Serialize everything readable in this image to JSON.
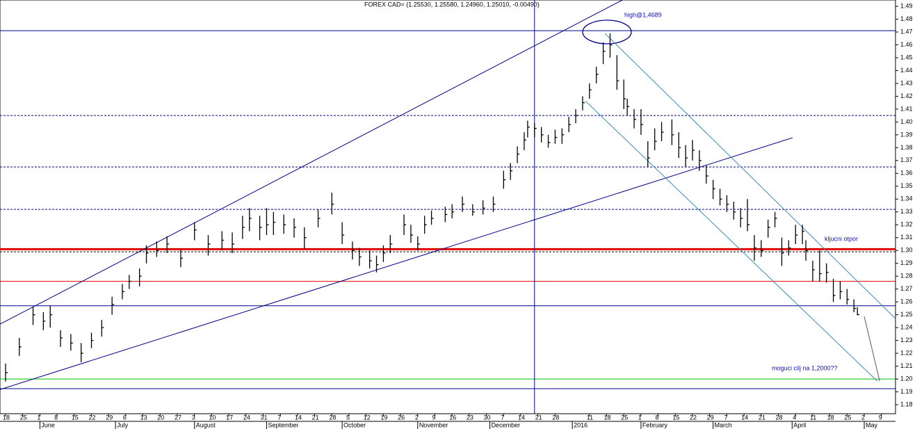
{
  "chart_data": {
    "type": "ohlc",
    "title": "FOREX CAD= (1.25530, 1.25580, 1.24960, 1.25010, -0.00490)",
    "annotations": [
      "high@1,4689",
      "kljucni otpor",
      "moguci cilj na 1,2000??"
    ],
    "color": "#000000",
    "x": [
      0,
      4,
      8,
      11,
      13,
      16,
      19,
      22,
      25,
      28,
      31,
      34,
      36,
      39,
      41,
      44,
      47,
      51,
      55,
      59,
      63,
      66,
      69,
      71,
      74,
      76,
      78,
      81,
      84,
      87,
      91,
      95,
      98,
      101,
      103,
      106,
      108,
      110,
      112,
      116,
      118,
      120,
      122,
      124,
      128,
      130,
      133,
      136,
      139,
      142,
      145,
      147,
      149,
      151,
      152,
      154,
      156,
      158,
      160,
      162,
      164,
      166,
      168,
      170,
      172,
      174,
      176,
      178,
      180,
      181,
      183,
      185,
      187,
      189,
      191,
      194,
      196,
      198,
      200,
      202,
      204,
      206,
      208,
      210,
      212,
      214,
      216,
      218,
      220,
      222,
      224,
      226,
      228,
      230,
      232,
      233,
      235,
      237,
      239,
      241,
      243,
      245,
      247,
      248
    ],
    "high": [
      1.212,
      1.232,
      1.256,
      1.252,
      1.257,
      1.238,
      1.235,
      1.228,
      1.236,
      1.246,
      1.264,
      1.274,
      1.281,
      1.286,
      1.304,
      1.307,
      1.311,
      1.301,
      1.322,
      1.312,
      1.315,
      1.314,
      1.327,
      1.333,
      1.327,
      1.333,
      1.33,
      1.328,
      1.325,
      1.318,
      1.332,
      1.345,
      1.322,
      1.307,
      1.302,
      1.3,
      1.296,
      1.304,
      1.312,
      1.328,
      1.32,
      1.311,
      1.327,
      1.331,
      1.334,
      1.336,
      1.342,
      1.336,
      1.339,
      1.342,
      1.362,
      1.368,
      1.381,
      1.392,
      1.401,
      1.399,
      1.396,
      1.39,
      1.394,
      1.395,
      1.404,
      1.41,
      1.42,
      1.43,
      1.443,
      1.462,
      1.4689,
      1.452,
      1.433,
      1.418,
      1.41,
      1.41,
      1.385,
      1.395,
      1.4,
      1.402,
      1.392,
      1.382,
      1.386,
      1.378,
      1.366,
      1.355,
      1.348,
      1.343,
      1.338,
      1.333,
      1.34,
      1.312,
      1.308,
      1.324,
      1.33,
      1.31,
      1.308,
      1.32,
      1.32,
      1.308,
      1.292,
      1.3,
      1.29,
      1.278,
      1.276,
      1.27,
      1.262,
      1.2558
    ],
    "low": [
      1.198,
      1.218,
      1.242,
      1.238,
      1.24,
      1.225,
      1.222,
      1.213,
      1.224,
      1.233,
      1.25,
      1.262,
      1.27,
      1.272,
      1.29,
      1.295,
      1.298,
      1.287,
      1.308,
      1.296,
      1.3,
      1.298,
      1.309,
      1.315,
      1.308,
      1.312,
      1.312,
      1.313,
      1.31,
      1.301,
      1.318,
      1.328,
      1.305,
      1.293,
      1.288,
      1.286,
      1.283,
      1.291,
      1.298,
      1.312,
      1.306,
      1.3,
      1.313,
      1.32,
      1.322,
      1.325,
      1.33,
      1.327,
      1.328,
      1.33,
      1.348,
      1.355,
      1.368,
      1.378,
      1.388,
      1.388,
      1.384,
      1.38,
      1.383,
      1.383,
      1.392,
      1.399,
      1.409,
      1.418,
      1.43,
      1.445,
      1.45,
      1.425,
      1.41,
      1.405,
      1.395,
      1.39,
      1.365,
      1.378,
      1.385,
      1.382,
      1.372,
      1.365,
      1.37,
      1.362,
      1.352,
      1.34,
      1.335,
      1.33,
      1.324,
      1.318,
      1.315,
      1.292,
      1.295,
      1.31,
      1.318,
      1.288,
      1.296,
      1.305,
      1.305,
      1.292,
      1.276,
      1.276,
      1.275,
      1.26,
      1.262,
      1.258,
      1.252,
      1.2496
    ],
    "close": [
      1.205,
      1.225,
      1.25,
      1.245,
      1.25,
      1.232,
      1.228,
      1.22,
      1.23,
      1.24,
      1.258,
      1.268,
      1.276,
      1.28,
      1.298,
      1.3,
      1.305,
      1.294,
      1.316,
      1.305,
      1.308,
      1.305,
      1.318,
      1.325,
      1.318,
      1.32,
      1.322,
      1.32,
      1.318,
      1.31,
      1.325,
      1.336,
      1.312,
      1.3,
      1.295,
      1.292,
      1.289,
      1.298,
      1.305,
      1.32,
      1.312,
      1.305,
      1.32,
      1.325,
      1.328,
      1.33,
      1.336,
      1.33,
      1.333,
      1.336,
      1.355,
      1.362,
      1.375,
      1.386,
      1.396,
      1.395,
      1.39,
      1.384,
      1.388,
      1.39,
      1.398,
      1.405,
      1.415,
      1.425,
      1.437,
      1.455,
      1.46,
      1.432,
      1.418,
      1.412,
      1.402,
      1.398,
      1.372,
      1.385,
      1.392,
      1.39,
      1.38,
      1.372,
      1.378,
      1.37,
      1.358,
      1.348,
      1.34,
      1.336,
      1.33,
      1.325,
      1.32,
      1.302,
      1.3,
      1.318,
      1.325,
      1.298,
      1.302,
      1.312,
      1.315,
      1.3,
      1.285,
      1.282,
      1.283,
      1.265,
      1.268,
      1.262,
      1.255,
      1.2501
    ],
    "xlim": [
      -1.62,
      259.1
    ],
    "ylim": [
      1.173,
      1.4949
    ],
    "yticks": [
      1.18,
      1.19,
      {
        "value": 1.2,
        "label": "1.20"
      },
      1.21,
      1.22,
      1.23,
      1.24,
      1.25,
      1.26,
      1.27,
      1.28,
      1.29,
      {
        "value": 1.3,
        "label": "1.30"
      },
      1.31,
      1.32,
      1.33,
      1.34,
      1.35,
      1.36,
      1.37,
      1.38,
      1.39,
      {
        "value": 1.4,
        "label": "1.40"
      },
      1.41,
      1.42,
      1.43,
      1.44,
      1.45,
      1.46,
      1.47,
      1.48,
      1.49
    ],
    "xticks": [
      {
        "value": 0,
        "label": "18"
      },
      {
        "value": 5,
        "label": "25"
      },
      {
        "value": 10,
        "label": "1"
      },
      {
        "value": 15,
        "label": "8"
      },
      {
        "value": 20,
        "label": "15"
      },
      {
        "value": 25,
        "label": "22"
      },
      {
        "value": 30,
        "label": "29"
      },
      {
        "value": 35,
        "label": "6"
      },
      {
        "value": 40,
        "label": "13"
      },
      {
        "value": 45,
        "label": "20"
      },
      {
        "value": 50,
        "label": "27"
      },
      {
        "value": 55,
        "label": "3"
      },
      {
        "value": 60,
        "label": "10"
      },
      {
        "value": 65,
        "label": "17"
      },
      {
        "value": 70,
        "label": "24"
      },
      {
        "value": 75,
        "label": "31"
      },
      {
        "value": 80,
        "label": "7"
      },
      {
        "value": 85,
        "label": "14"
      },
      {
        "value": 90,
        "label": "21"
      },
      {
        "value": 95,
        "label": "28"
      },
      {
        "value": 100,
        "label": "5"
      },
      {
        "value": 105,
        "label": "12"
      },
      {
        "value": 110,
        "label": "19"
      },
      {
        "value": 115,
        "label": "26"
      },
      {
        "value": 120,
        "label": "2"
      },
      {
        "value": 125,
        "label": "9"
      },
      {
        "value": 130,
        "label": "16"
      },
      {
        "value": 135,
        "label": "23"
      },
      {
        "value": 140,
        "label": "30"
      },
      {
        "value": 145,
        "label": "7"
      },
      {
        "value": 150,
        "label": "14"
      },
      {
        "value": 155,
        "label": "21"
      },
      {
        "value": 160,
        "label": "28"
      },
      {
        "value": 170,
        "label": "11"
      },
      {
        "value": 175,
        "label": "18"
      },
      {
        "value": 180,
        "label": "25"
      },
      {
        "value": 185,
        "label": "1"
      },
      {
        "value": 190,
        "label": "8"
      },
      {
        "value": 195,
        "label": "15"
      },
      {
        "value": 200,
        "label": "22"
      },
      {
        "value": 205,
        "label": "29"
      },
      {
        "value": 210,
        "label": "7"
      },
      {
        "value": 215,
        "label": "14"
      },
      {
        "value": 220,
        "label": "21"
      },
      {
        "value": 225,
        "label": "28"
      },
      {
        "value": 230,
        "label": "4"
      },
      {
        "value": 235,
        "label": "11"
      },
      {
        "value": 240,
        "label": "18"
      },
      {
        "value": 245,
        "label": "25"
      },
      {
        "value": 250,
        "label": "2"
      },
      {
        "value": 255,
        "label": "9"
      }
    ],
    "month_ticks": [
      {
        "value": 10,
        "label": "June"
      },
      {
        "value": 32,
        "label": "July"
      },
      {
        "value": 55,
        "label": "August"
      },
      {
        "value": 76,
        "label": "September"
      },
      {
        "value": 98,
        "label": "October"
      },
      {
        "value": 120,
        "label": "November"
      },
      {
        "value": 141,
        "label": "December"
      },
      {
        "value": 165,
        "label": "2016"
      },
      {
        "value": 185,
        "label": "February"
      },
      {
        "value": 206,
        "label": "March"
      },
      {
        "value": 229,
        "label": "April"
      },
      {
        "value": 250,
        "label": "May"
      }
    ],
    "hlines": [
      {
        "y": 1.471,
        "color": "#00008b",
        "width": 1,
        "dash": false
      },
      {
        "y": 1.405,
        "color": "#00008b",
        "width": 1,
        "dash": true
      },
      {
        "y": 1.365,
        "color": "#00008b",
        "width": 1,
        "dash": true
      },
      {
        "y": 1.332,
        "color": "#00008b",
        "width": 1,
        "dash": true
      },
      {
        "y": 1.299,
        "color": "#000000",
        "width": 1,
        "dash": true
      },
      {
        "y": 1.301,
        "color": "#e00000",
        "width": 3,
        "dash": false
      },
      {
        "y": 1.276,
        "color": "#e00000",
        "width": 1,
        "dash": false
      },
      {
        "y": 1.257,
        "color": "#00008b",
        "width": 1,
        "dash": false
      },
      {
        "y": 1.2,
        "color": "#00c000",
        "width": 1,
        "dash": false
      },
      {
        "y": 1.1925,
        "color": "#00008b",
        "width": 1,
        "dash": false
      }
    ],
    "vlines": [
      {
        "x": 154,
        "color": "#00008b"
      }
    ],
    "trendlines": [
      {
        "x": [
          -1.62,
          179.6
        ],
        "y": [
          1.2427,
          1.4949
        ],
        "color": "#00008b"
      },
      {
        "x": [
          -1.62,
          229.1
        ],
        "y": [
          1.1918,
          1.3877
        ],
        "color": "#00008b"
      },
      {
        "x": [
          168.8,
          253.8
        ],
        "y": [
          1.4164,
          1.1983
        ],
        "color": "#3a8ab8"
      },
      {
        "x": [
          174.5,
          259.1
        ],
        "y": [
          1.4689,
          1.247
        ],
        "color": "#3a8ab8"
      },
      {
        "x": [
          250.0,
          254.5
        ],
        "y": [
          1.2487,
          1.1983
        ],
        "color": "#555577"
      }
    ]
  }
}
